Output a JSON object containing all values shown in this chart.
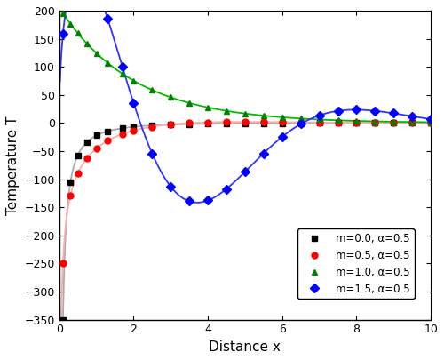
{
  "xlabel": "Distance x",
  "ylabel": "Temperature T",
  "xlim": [
    0,
    10
  ],
  "ylim": [
    -350,
    200
  ],
  "xticks": [
    0,
    2,
    4,
    6,
    8,
    10
  ],
  "yticks": [
    -350,
    -300,
    -250,
    -200,
    -150,
    -100,
    -50,
    0,
    50,
    100,
    150,
    200
  ],
  "series": [
    {
      "label": "m=0.0, α=0.5",
      "line_color": "#aaaaaa",
      "marker": "s",
      "marker_color": "black",
      "m": 0.0
    },
    {
      "label": "m=0.5, α=0.5",
      "line_color": "#ffaaaa",
      "marker": "o",
      "marker_color": "red",
      "m": 0.5
    },
    {
      "label": "m=1.0, α=0.5",
      "line_color": "#00bb00",
      "marker": "^",
      "marker_color": "green",
      "m": 1.0
    },
    {
      "label": "m=1.5, α=0.5",
      "line_color": "#3333ff",
      "marker": "D",
      "marker_color": "blue",
      "m": 1.5
    }
  ],
  "legend_loc": "center right",
  "background_color": "#ffffff",
  "marker_size": 5,
  "linewidth": 1.3
}
